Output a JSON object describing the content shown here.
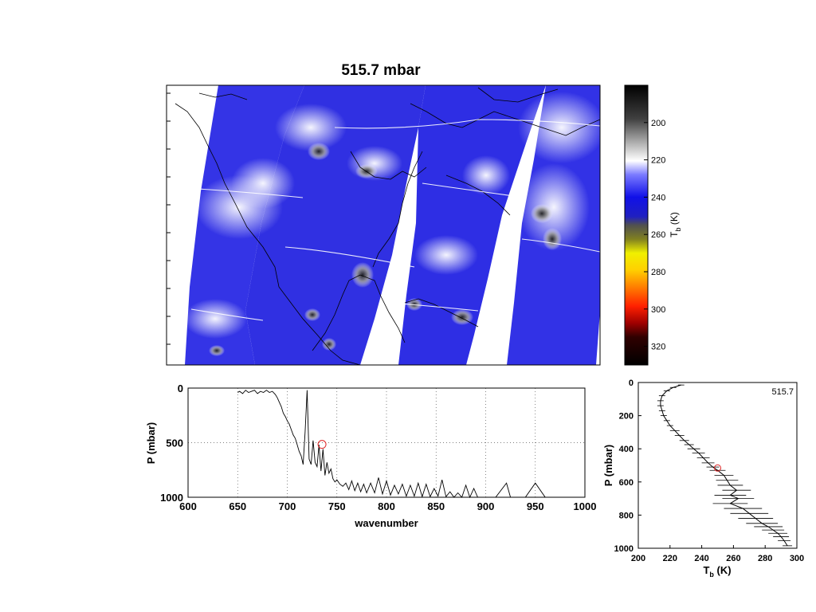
{
  "figure": {
    "title": "515.7 mbar",
    "colors": {
      "frame": "#000000",
      "grid": "#555555",
      "marker": "#dd2222",
      "swath_blue": "#2a2ce8"
    }
  },
  "colorbar": {
    "label_main": "T",
    "label_sub": "b",
    "label_unit": " (K)",
    "ticks": [
      "200",
      "220",
      "240",
      "260",
      "280",
      "300",
      "320"
    ],
    "range": [
      180,
      330
    ]
  },
  "chart_data": [
    {
      "type": "heatmap",
      "title": "515.7 mbar",
      "description": "Brightness temperature map over North America from satellite swaths with coastlines",
      "colorbar_range": [
        180,
        330
      ]
    },
    {
      "type": "line",
      "xlabel": "wavenumber",
      "ylabel": "P (mbar)",
      "xlim": [
        600,
        1000
      ],
      "ylim": [
        1000,
        0
      ],
      "xticks": [
        "600",
        "650",
        "700",
        "750",
        "800",
        "850",
        "900",
        "950",
        "1000"
      ],
      "yticks": [
        "0",
        "500",
        "1000"
      ],
      "grid": true,
      "series": [
        {
          "x": [
            650,
            652,
            655,
            658,
            661,
            664,
            667,
            670,
            673,
            676,
            679,
            682,
            685,
            688,
            690,
            692,
            694,
            696,
            698,
            700,
            702,
            704,
            706,
            708,
            710,
            712,
            714,
            716,
            718,
            720,
            722,
            724,
            726,
            728,
            730,
            732,
            734,
            736,
            738,
            740,
            742,
            744,
            746,
            748,
            750,
            753,
            756,
            759,
            762,
            765,
            768,
            771,
            774,
            777,
            780,
            784,
            788,
            792,
            796,
            800,
            804,
            808,
            812,
            816,
            820,
            824,
            828,
            832,
            836,
            840,
            844,
            848,
            852,
            856,
            860,
            864,
            868,
            872,
            876,
            880,
            884,
            888,
            892,
            900,
            910,
            921,
            925,
            940,
            950,
            960,
            975,
            990,
            1000
          ],
          "y": [
            40,
            30,
            50,
            20,
            40,
            30,
            20,
            50,
            30,
            40,
            20,
            40,
            30,
            60,
            90,
            130,
            170,
            230,
            260,
            300,
            330,
            380,
            430,
            460,
            520,
            580,
            620,
            700,
            400,
            20,
            650,
            700,
            480,
            680,
            720,
            520,
            760,
            560,
            800,
            680,
            780,
            740,
            830,
            860,
            840,
            880,
            900,
            870,
            930,
            850,
            940,
            870,
            950,
            880,
            960,
            870,
            960,
            820,
            970,
            850,
            980,
            890,
            970,
            880,
            990,
            890,
            990,
            870,
            995,
            880,
            995,
            920,
            990,
            840,
            995,
            950,
            1000,
            960,
            1000,
            890,
            1000,
            920,
            1000,
            1000,
            1000,
            870,
            1000,
            1000,
            870,
            1000,
            1000,
            1000,
            1000
          ]
        }
      ],
      "marker": {
        "x": 735,
        "y": 515.7
      }
    },
    {
      "type": "line",
      "xlabel_main": "T",
      "xlabel_sub": "b",
      "xlabel_unit": " (K)",
      "ylabel": "P (mbar)",
      "xlim": [
        200,
        300
      ],
      "ylim": [
        1000,
        0
      ],
      "xticks": [
        "200",
        "220",
        "240",
        "260",
        "280",
        "300"
      ],
      "yticks": [
        "0",
        "200",
        "400",
        "600",
        "800",
        "1000"
      ],
      "annotation": "515.7",
      "series": [
        {
          "tb": [
            227,
            222,
            218,
            215,
            214,
            214,
            215,
            216,
            218,
            220,
            223,
            226,
            229,
            232,
            235,
            238,
            241,
            244,
            247,
            250,
            254,
            256,
            258,
            262,
            258,
            263,
            258,
            266,
            270,
            274,
            278,
            282,
            285,
            288,
            290,
            292,
            294
          ],
          "p": [
            15,
            30,
            50,
            80,
            110,
            140,
            170,
            200,
            230,
            260,
            290,
            320,
            350,
            375,
            400,
            425,
            455,
            485,
            510,
            530,
            560,
            590,
            620,
            650,
            680,
            700,
            730,
            760,
            790,
            820,
            850,
            870,
            890,
            910,
            930,
            955,
            985
          ],
          "err": [
            2,
            2,
            2,
            2,
            2,
            2,
            2,
            2,
            2,
            2,
            3,
            3,
            3,
            3,
            4,
            4,
            4,
            4,
            4,
            5,
            6,
            7,
            8,
            9,
            10,
            10,
            11,
            12,
            12,
            11,
            10,
            9,
            7,
            6,
            5,
            4,
            3
          ]
        }
      ],
      "marker": {
        "tb": 250,
        "p": 515.7
      }
    }
  ]
}
